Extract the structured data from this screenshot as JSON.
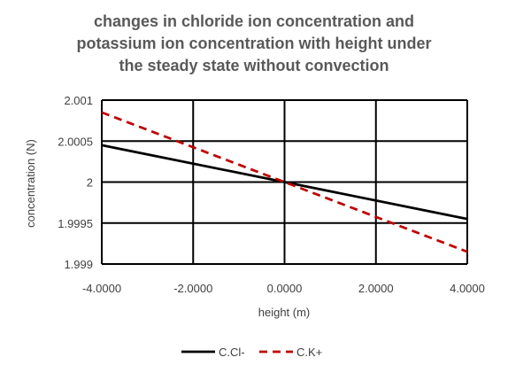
{
  "chart_data": {
    "type": "line",
    "title_lines": [
      "changes in chloride ion concentration and",
      "potassium ion concentration with height under",
      "the steady state without convection"
    ],
    "xlabel": "height (m)",
    "ylabel": "concentration (N)",
    "xlim": [
      -4,
      4
    ],
    "ylim": [
      1.999,
      2.001
    ],
    "x_ticks": [
      -4,
      -2,
      0,
      2,
      4
    ],
    "x_tick_labels": [
      "-4.0000",
      "-2.0000",
      "0.0000",
      "2.0000",
      "4.0000"
    ],
    "y_ticks": [
      1.999,
      1.9995,
      2,
      2.0005,
      2.001
    ],
    "y_tick_labels": [
      "1.999",
      "1.9995",
      "2",
      "2.0005",
      "2.001"
    ],
    "grid": true,
    "legend_position": "bottom",
    "series": [
      {
        "name": "C.Cl-",
        "color": "#000000",
        "dash": "solid",
        "x": [
          -4,
          0,
          4
        ],
        "y": [
          2.00045,
          2.0,
          1.99955
        ]
      },
      {
        "name": "C.K+",
        "color": "#C00000",
        "dash": "dashed",
        "x": [
          -4,
          0,
          4
        ],
        "y": [
          2.00085,
          2.0,
          1.99915
        ]
      }
    ]
  }
}
